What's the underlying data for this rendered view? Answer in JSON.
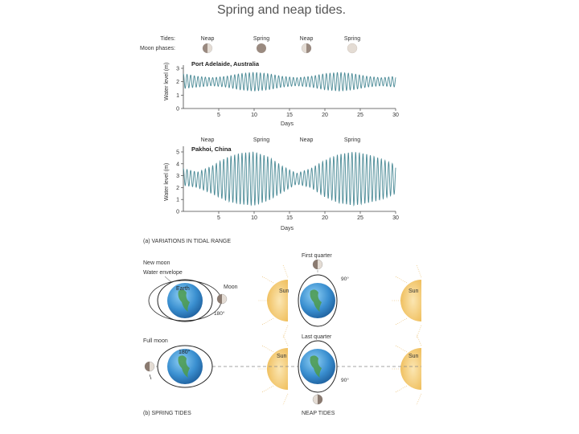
{
  "slide": {
    "title": "Spring and neap tides."
  },
  "top_panel": {
    "tides_label": "Tides:",
    "moon_phases_label": "Moon phases:",
    "tide_labels": [
      "Neap",
      "Spring",
      "Neap",
      "Spring"
    ],
    "moon_phase_icons": [
      "first-quarter-moon-icon",
      "new-moon-icon",
      "last-quarter-moon-icon",
      "full-moon-icon"
    ]
  },
  "section_a_caption": "(a) VARIATIONS IN TIDAL RANGE",
  "section_b_caption": "(b) SPRING TIDES",
  "neap_caption": "NEAP TIDES",
  "diagram_labels": {
    "new_moon": "New moon",
    "water_envelope": "Water envelope",
    "earth": "Earth",
    "moon": "Moon",
    "angle_180_top": "180°",
    "full_moon": "Full moon",
    "angle_180_bottom": "180°",
    "sun": "Sun",
    "first_quarter": "First quarter",
    "angle_90_top": "90°",
    "last_quarter": "Last quarter",
    "angle_90_bottom": "90°"
  },
  "colors": {
    "wave": "#4a8a96",
    "earth": "#3a8fd0",
    "sun": "#f3c874",
    "moon_dark": "#9a8a80",
    "moon_light": "#e4dcd4"
  },
  "chart_data": [
    {
      "type": "line",
      "title": "Port Adelaide, Australia",
      "xlabel": "Days",
      "ylabel": "Water level (m)",
      "xlim": [
        0,
        30
      ],
      "ylim": [
        0,
        3
      ],
      "xticks": [
        5,
        10,
        15,
        20,
        25,
        30
      ],
      "yticks": [
        0,
        1,
        2,
        3
      ],
      "xtick_labels": [
        "5",
        "10",
        "15",
        "20",
        "25",
        "30"
      ],
      "ytick_labels": [
        "0",
        "1",
        "2",
        "3"
      ],
      "phase_labels": [
        "Neap",
        "Spring",
        "Neap",
        "Spring"
      ],
      "series": [
        {
          "x": [
            0,
            2,
            4,
            6,
            8,
            10,
            12,
            14,
            16,
            18,
            20,
            22,
            24,
            26,
            28,
            30
          ],
          "high": [
            2.6,
            2.4,
            2.3,
            2.4,
            2.6,
            2.7,
            2.6,
            2.4,
            2.3,
            2.4,
            2.6,
            2.7,
            2.6,
            2.4,
            2.3,
            2.4
          ],
          "low": [
            1.5,
            1.6,
            1.7,
            1.6,
            1.4,
            1.3,
            1.4,
            1.6,
            1.7,
            1.6,
            1.4,
            1.3,
            1.4,
            1.6,
            1.7,
            1.6
          ]
        }
      ]
    },
    {
      "type": "line",
      "title": "Pakhoi, China",
      "xlabel": "Days",
      "ylabel": "Water level (m)",
      "xlim": [
        0,
        30
      ],
      "ylim": [
        0,
        5
      ],
      "xticks": [
        5,
        10,
        15,
        20,
        25,
        30
      ],
      "yticks": [
        0,
        1,
        2,
        3,
        4,
        5
      ],
      "xtick_labels": [
        "5",
        "10",
        "15",
        "20",
        "25",
        "30"
      ],
      "ytick_labels": [
        "0",
        "1",
        "2",
        "3",
        "4",
        "5"
      ],
      "phase_labels": [
        "Neap",
        "Spring",
        "Neap",
        "Spring"
      ],
      "series": [
        {
          "x": [
            0,
            2,
            4,
            6,
            8,
            10,
            12,
            14,
            16,
            18,
            20,
            22,
            24,
            26,
            28,
            30
          ],
          "high": [
            3.6,
            3.3,
            3.8,
            4.5,
            4.9,
            5.0,
            4.6,
            3.8,
            3.2,
            3.6,
            4.3,
            4.8,
            5.0,
            4.8,
            4.4,
            3.9
          ],
          "low": [
            2.2,
            2.0,
            1.5,
            0.9,
            0.6,
            0.5,
            0.9,
            1.6,
            2.3,
            2.0,
            1.2,
            0.7,
            0.5,
            0.7,
            1.0,
            1.5
          ]
        }
      ]
    }
  ]
}
